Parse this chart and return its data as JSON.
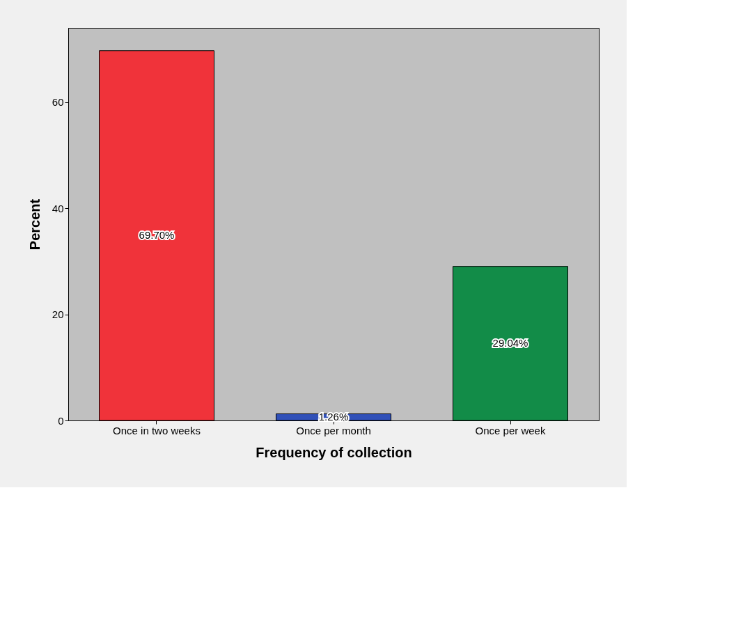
{
  "chart_data": {
    "type": "bar",
    "xlabel": "Frequency of collection",
    "ylabel": "Percent",
    "categories": [
      "Once in two weeks",
      "Once per month",
      "Once per week"
    ],
    "values": [
      69.7,
      1.26,
      29.04
    ],
    "colors": [
      "#f0333a",
      "#3050b8",
      "#128c48"
    ],
    "value_labels": [
      "69.70%",
      "1.26%",
      "29.04%"
    ],
    "ylim": [
      0,
      74
    ],
    "yticks": [
      0,
      20,
      40,
      60
    ],
    "grid": false
  }
}
